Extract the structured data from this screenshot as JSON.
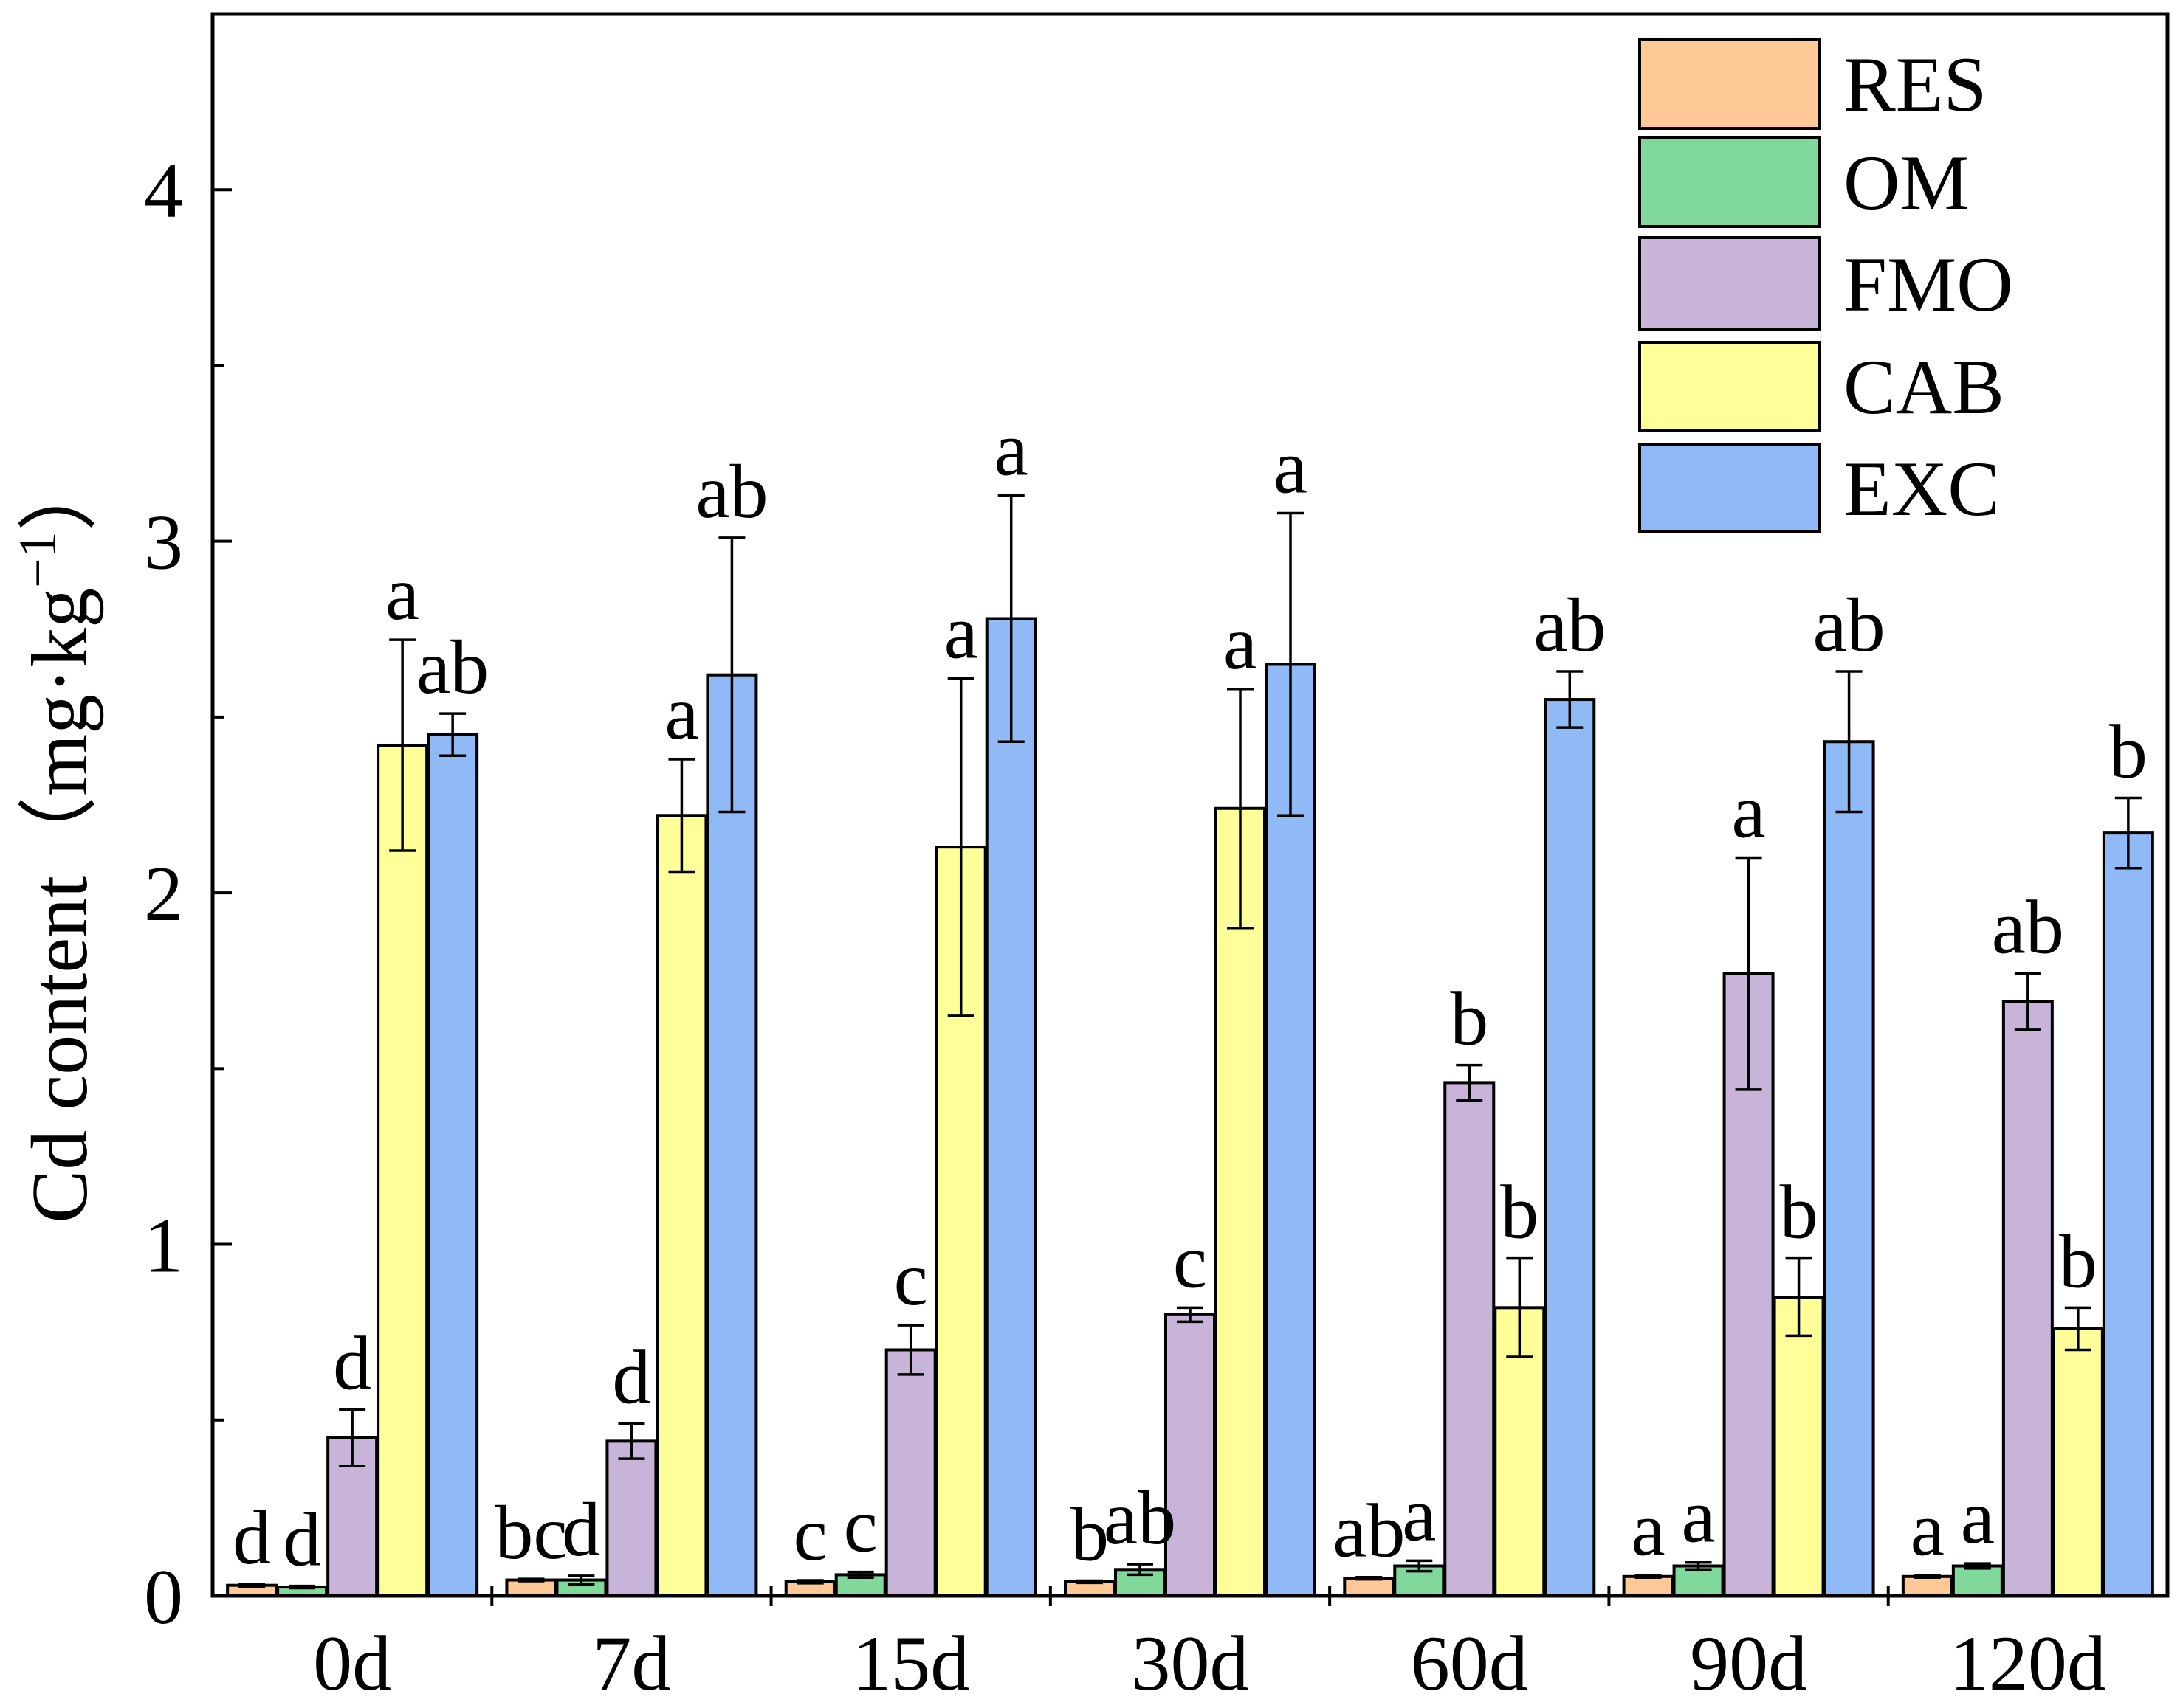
{
  "chart_data": {
    "type": "bar",
    "title": "",
    "xlabel": "",
    "ylabel": "Cd content（mg·kg",
    "ylabel_superscript": "−1",
    "ylabel_suffix": "）",
    "ylim": [
      0,
      4.5
    ],
    "yticks": [
      0,
      1,
      2,
      3,
      4
    ],
    "ytick_labels": [
      "0",
      "1",
      "2",
      "3",
      "4"
    ],
    "yminor_step": 0.5,
    "grid": false,
    "legend_position": "top-right",
    "categories": [
      "0d",
      "7d",
      "15d",
      "30d",
      "60d",
      "90d",
      "120d"
    ],
    "series": [
      {
        "name": "RES",
        "color": "#FFC896",
        "values": [
          0.03,
          0.045,
          0.04,
          0.04,
          0.05,
          0.055,
          0.055
        ],
        "errors": [
          0.004,
          0.003,
          0.004,
          0.003,
          0.003,
          0.003,
          0.003
        ],
        "labels": [
          "d",
          "bc",
          "c",
          "b",
          "ab",
          "a",
          "a"
        ]
      },
      {
        "name": "OM",
        "color": "#80D99B",
        "values": [
          0.025,
          0.045,
          0.06,
          0.075,
          0.085,
          0.085,
          0.085
        ],
        "errors": [
          0.003,
          0.012,
          0.008,
          0.015,
          0.015,
          0.01,
          0.007
        ],
        "labels": [
          "d",
          "d",
          "c",
          "ab",
          "a",
          "a",
          "a"
        ]
      },
      {
        "name": "FMO",
        "color": "#C8B3D9",
        "values": [
          0.45,
          0.44,
          0.7,
          0.8,
          1.46,
          1.77,
          1.69
        ],
        "errors": [
          0.08,
          0.05,
          0.07,
          0.02,
          0.05,
          0.33,
          0.08
        ],
        "labels": [
          "d",
          "d",
          "c",
          "c",
          "b",
          "a",
          "ab"
        ]
      },
      {
        "name": "CAB",
        "color": "#FFFF99",
        "values": [
          2.42,
          2.22,
          2.13,
          2.24,
          0.82,
          0.85,
          0.76
        ],
        "errors": [
          0.3,
          0.16,
          0.48,
          0.34,
          0.14,
          0.11,
          0.06
        ],
        "labels": [
          "a",
          "a",
          "a",
          "a",
          "b",
          "b",
          "b"
        ]
      },
      {
        "name": "EXC",
        "color": "#8FBAF5",
        "values": [
          2.45,
          2.62,
          2.78,
          2.65,
          2.55,
          2.43,
          2.17
        ],
        "errors": [
          0.06,
          0.39,
          0.35,
          0.43,
          0.08,
          0.2,
          0.1
        ],
        "labels": [
          "ab",
          "ab",
          "a",
          "a",
          "ab",
          "ab",
          "b"
        ]
      }
    ]
  }
}
